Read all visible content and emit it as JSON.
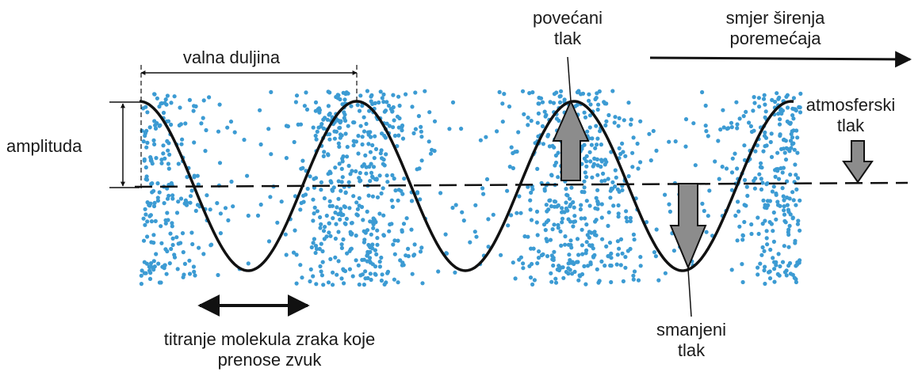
{
  "labels": {
    "wavelength": [
      "valna duljina"
    ],
    "amplitude": [
      "amplituda"
    ],
    "increased_pressure": [
      "povećani",
      "tlak"
    ],
    "propagation_direction": [
      "smjer širenja",
      "poremećaja"
    ],
    "atmospheric_pressure": [
      "atmosferski",
      "tlak"
    ],
    "reduced_pressure": [
      "smanjeni",
      "tlak"
    ],
    "molecule_oscillation": [
      "titranje molekula zraka koje",
      "prenose zvuk"
    ]
  }
}
